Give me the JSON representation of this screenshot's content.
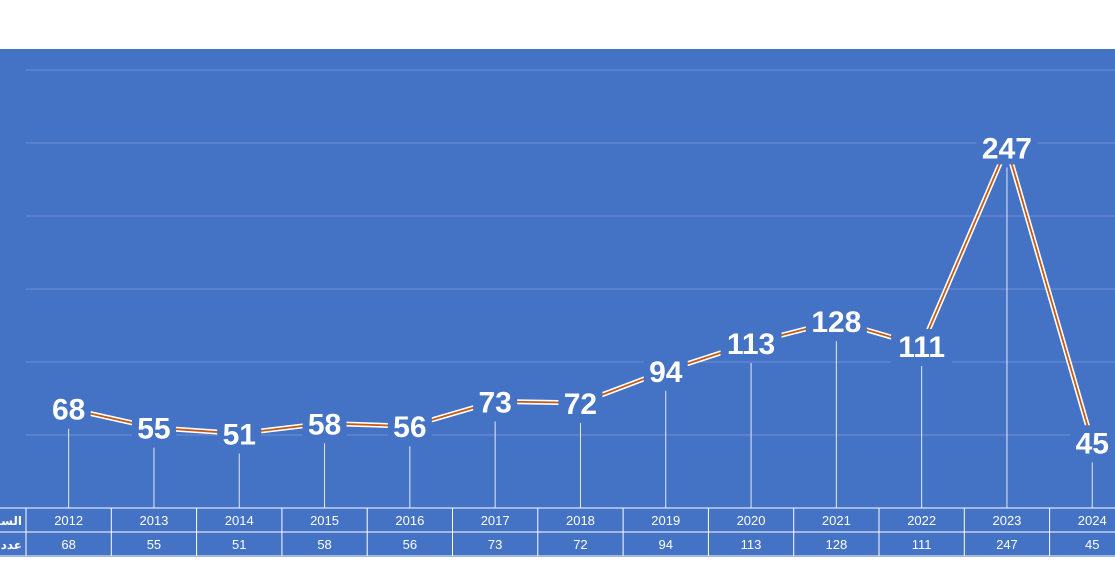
{
  "chart_data": {
    "type": "line",
    "title": "",
    "categories": [
      "2012",
      "2013",
      "2014",
      "2015",
      "2016",
      "2017",
      "2018",
      "2019",
      "2020",
      "2021",
      "2022",
      "2023",
      "2024"
    ],
    "series": [
      {
        "values": [
          68,
          55,
          51,
          58,
          56,
          73,
          72,
          94,
          113,
          128,
          111,
          247,
          45
        ]
      }
    ],
    "ylim": [
      0,
      300
    ],
    "grid": true,
    "data_table_row_labels": [
      "السنة",
      "عدد"
    ],
    "colors": {
      "background": "#4472c4",
      "line_outer": "#ffffff",
      "line_inner": "#c55a11",
      "grid": "#6b8fd4"
    }
  }
}
